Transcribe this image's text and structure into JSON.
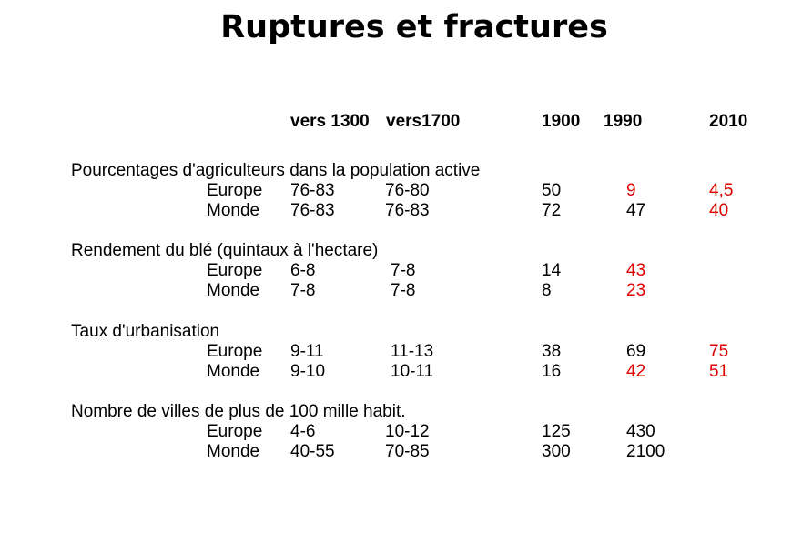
{
  "title": "Ruptures et fractures",
  "headers": [
    "vers 1300",
    "vers1700",
    "1900",
    "1990",
    "2010"
  ],
  "colors": {
    "highlight": "#e00000"
  },
  "sections": [
    {
      "label": "Pourcentages d'agriculteurs dans la population active",
      "rows": [
        {
          "region": "Europe",
          "values": [
            "76-83",
            "76-80",
            "50",
            "9",
            "4,5"
          ],
          "red": [
            false,
            false,
            false,
            true,
            true
          ]
        },
        {
          "region": "Monde",
          "values": [
            "76-83",
            "76-83",
            "72",
            "47",
            "40"
          ],
          "red": [
            false,
            false,
            false,
            false,
            true
          ]
        }
      ]
    },
    {
      "label": "Rendement du blé (quintaux à l'hectare)",
      "rows": [
        {
          "region": "Europe",
          "values": [
            "6-8",
            "7-8",
            "14",
            "43",
            ""
          ],
          "red": [
            false,
            false,
            false,
            true,
            false
          ]
        },
        {
          "region": "Monde",
          "values": [
            "7-8",
            "7-8",
            "8",
            "23",
            ""
          ],
          "red": [
            false,
            false,
            false,
            true,
            false
          ]
        }
      ]
    },
    {
      "label": "Taux d'urbanisation",
      "rows": [
        {
          "region": "Europe",
          "values": [
            "9-11",
            "11-13",
            "38",
            "69",
            "75"
          ],
          "red": [
            false,
            false,
            false,
            false,
            true
          ]
        },
        {
          "region": "Monde",
          "values": [
            "9-10",
            "10-11",
            "16",
            "42",
            "51"
          ],
          "red": [
            false,
            false,
            false,
            true,
            true
          ]
        }
      ]
    },
    {
      "label": "Nombre de villes de plus de 100 mille habit.",
      "rows": [
        {
          "region": "Europe",
          "values": [
            "4-6",
            "10-12",
            "125",
            "430",
            ""
          ],
          "red": [
            false,
            false,
            false,
            false,
            false
          ]
        },
        {
          "region": "Monde",
          "values": [
            "40-55",
            "70-85",
            "300",
            "2100",
            ""
          ],
          "red": [
            false,
            false,
            false,
            false,
            false
          ]
        }
      ]
    }
  ]
}
